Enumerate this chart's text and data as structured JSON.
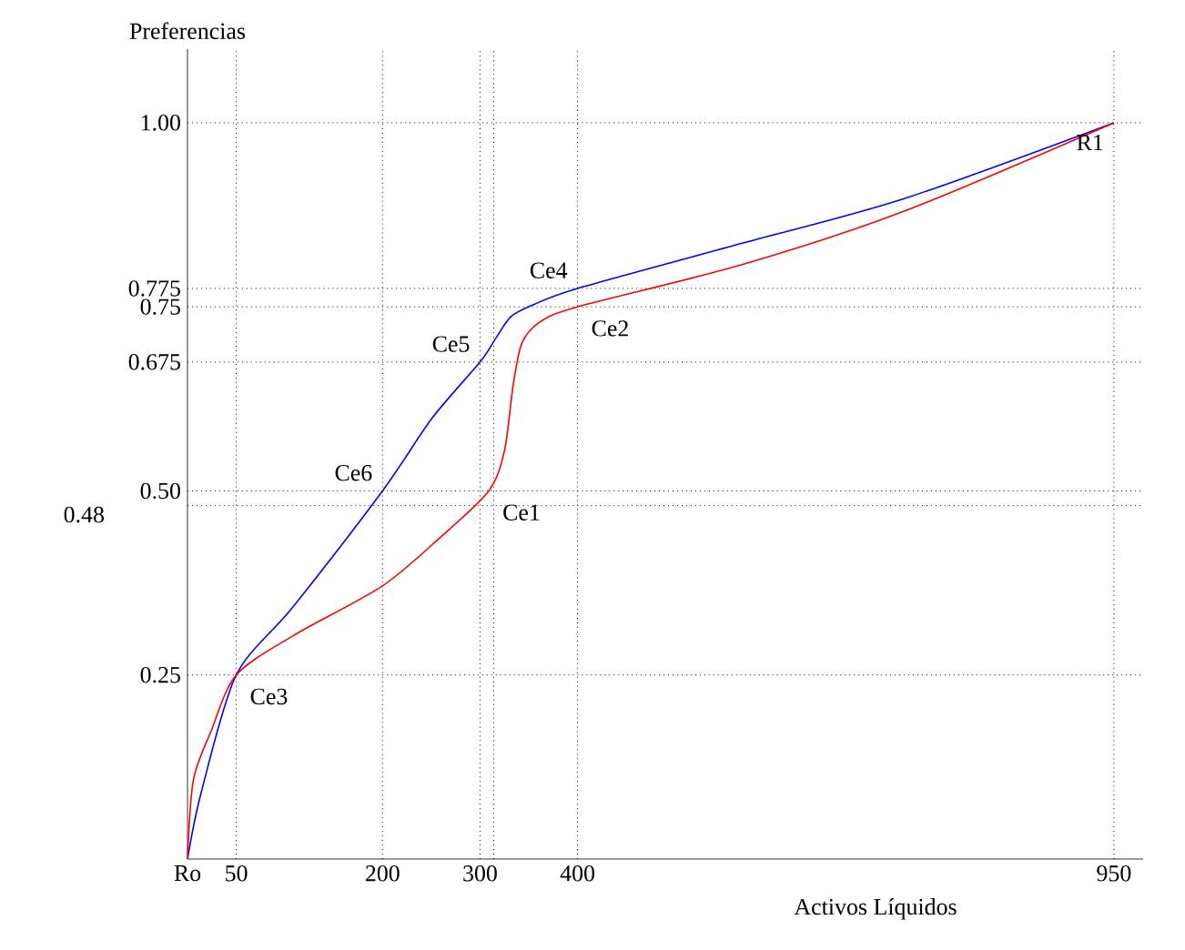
{
  "chart_data": {
    "type": "line",
    "xlabel": "Activos Líquidos",
    "ylabel": "Preferencias",
    "xlim": [
      0,
      980
    ],
    "ylim": [
      0,
      1.1
    ],
    "xticks": [
      {
        "value": 0,
        "label": "Ro"
      },
      50,
      200,
      300,
      400,
      950
    ],
    "yticks": [
      0.25,
      {
        "value": 0.5,
        "label": "0.50"
      },
      0.675,
      0.75,
      0.775,
      {
        "value": 1,
        "label": "1.00"
      }
    ],
    "series": [
      {
        "color": "#0000ff",
        "x": [
          0,
          14,
          50,
          108,
          200,
          251,
          300,
          317,
          332,
          355,
          400,
          568,
          735,
          950
        ],
        "values": [
          0,
          0.09,
          0.25,
          0.342,
          0.5,
          0.599,
          0.675,
          0.709,
          0.737,
          0.753,
          0.775,
          0.836,
          0.897,
          1
        ]
      },
      {
        "color": "#ff0000",
        "x": [
          0,
          6,
          24,
          50,
          108,
          200,
          261,
          309,
          325,
          334,
          343,
          362,
          400,
          568,
          735,
          950
        ],
        "values": [
          0,
          0.107,
          0.173,
          0.25,
          0.303,
          0.371,
          0.439,
          0.5,
          0.554,
          0.644,
          0.701,
          0.73,
          0.75,
          0.807,
          0.88,
          1
        ]
      }
    ],
    "ref_lines": [
      {
        "axis": "y",
        "value": 0.25,
        "line_style": "dotted"
      },
      {
        "axis": "y",
        "value": 0.48,
        "label": "0.48",
        "line_style": "dotted"
      },
      {
        "axis": "y",
        "value": 0.5,
        "line_style": "dotted"
      },
      {
        "axis": "y",
        "value": 0.675,
        "line_style": "dotted"
      },
      {
        "axis": "y",
        "value": 0.75,
        "line_style": "dotted"
      },
      {
        "axis": "y",
        "value": 0.775,
        "line_style": "dotted"
      },
      {
        "axis": "y",
        "value": 1,
        "line_style": "dotted"
      },
      {
        "axis": "x",
        "value": 50,
        "line_style": "dotted"
      },
      {
        "axis": "x",
        "value": 200,
        "line_style": "dotted"
      },
      {
        "axis": "x",
        "value": 300,
        "line_style": "dotted"
      },
      {
        "axis": "x",
        "value": 314,
        "line_style": "dotted"
      },
      {
        "axis": "x",
        "value": 400,
        "line_style": "dotted"
      },
      {
        "axis": "x",
        "value": 950,
        "line_style": "dotted"
      }
    ],
    "annotations": [
      {
        "text": "Ce1",
        "x": 309,
        "y": 0.5
      },
      {
        "text": "Ce2",
        "x": 400,
        "y": 0.75
      },
      {
        "text": "Ce3",
        "x": 50,
        "y": 0.25
      },
      {
        "text": "Ce4",
        "x": 400,
        "y": 0.775
      },
      {
        "text": "Ce5",
        "x": 300,
        "y": 0.675
      },
      {
        "text": "Ce6",
        "x": 200,
        "y": 0.5
      },
      {
        "text": "R1",
        "x": 950,
        "y": 1
      }
    ]
  }
}
